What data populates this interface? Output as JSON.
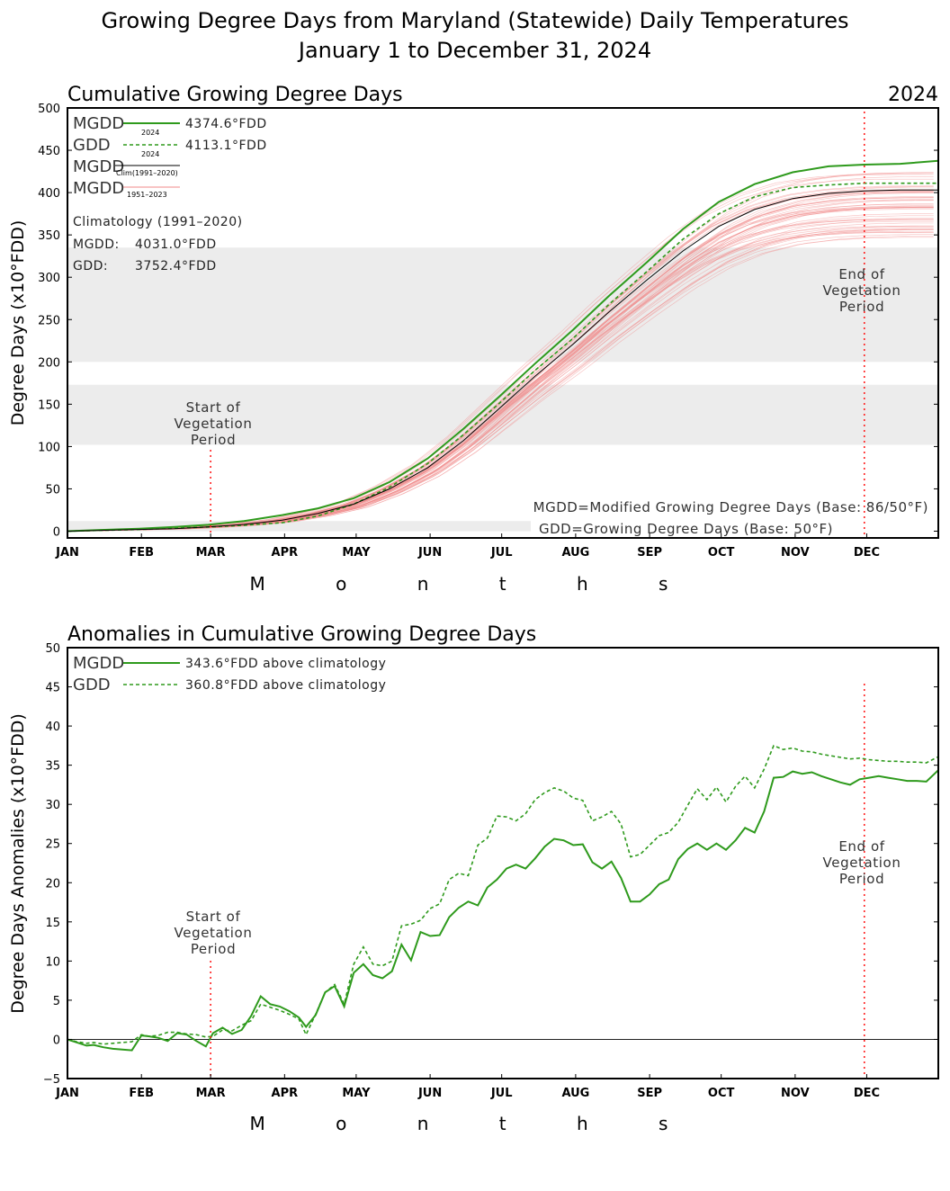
{
  "title_line1": "Growing Degree Days from Maryland (Statewide) Daily Temperatures",
  "title_line2": "January 1 to December 31, 2024",
  "months": [
    "JAN",
    "FEB",
    "MAR",
    "APR",
    "MAY",
    "JUN",
    "JUL",
    "AUG",
    "SEP",
    "OCT",
    "NOV",
    "DEC"
  ],
  "months_axis_label": "M o n t h s",
  "colors": {
    "green": "#2e9a1c",
    "climatology": "#000000",
    "historical": "#f08a8a",
    "vegetation_marker": "#ff2020",
    "band": "#ececec"
  },
  "top": {
    "title": "Cumulative Growing Degree Days",
    "year_label": "2024",
    "ylabel": "Degree Days (x10°FDD)",
    "yticks": [
      "0",
      "50",
      "100",
      "150",
      "200",
      "250",
      "300",
      "350",
      "400",
      "450",
      "500"
    ],
    "legend": {
      "mgdd_label": "MGDD",
      "mgdd_sub": "2024",
      "mgdd_value": "4374.6°FDD",
      "gdd_label": "GDD",
      "gdd_sub": "2024",
      "gdd_value": "4113.1°FDD",
      "clim_label": "MGDD",
      "clim_sub": "Clim(1991–2020)",
      "hist_label": "MGDD",
      "hist_sub": "1951–2023"
    },
    "climatology": {
      "heading": "Climatology (1991–2020)",
      "mgdd_label": "MGDD:",
      "mgdd_value": "4031.0°FDD",
      "gdd_label": "GDD:",
      "gdd_value": "3752.4°FDD"
    },
    "notes": {
      "mgdd_def": "MGDD=Modified Growing Degree Days (Base: 86/50°F)",
      "gdd_def": "GDD=Growing Degree Days (Base: 50°F)"
    },
    "start_veg": [
      "Start of",
      "Vegetation",
      "Period"
    ],
    "end_veg": [
      "End of",
      "Vegetation",
      "Period"
    ]
  },
  "bottom": {
    "title": "Anomalies in Cumulative Growing Degree Days",
    "ylabel": "Degree Days Anomalies (x10°FDD)",
    "yticks": [
      "−5",
      "0",
      "5",
      "10",
      "15",
      "20",
      "25",
      "30",
      "35",
      "40",
      "45",
      "50"
    ],
    "legend": {
      "mgdd_label": "MGDD",
      "mgdd_value": "343.6°FDD above climatology",
      "gdd_label": "GDD",
      "gdd_value": "360.8°FDD above climatology"
    },
    "start_veg": [
      "Start of",
      "Vegetation",
      "Period"
    ],
    "end_veg": [
      "End of",
      "Vegetation",
      "Period"
    ]
  },
  "chart_data": [
    {
      "type": "line",
      "title": "Cumulative Growing Degree Days",
      "xlabel": "Months",
      "ylabel": "Degree Days (x10°FDD)",
      "ylim": [
        0,
        500
      ],
      "x_unit": "day of year",
      "vegetation_period_days": [
        61,
        335
      ],
      "shaded_bands": [
        [
          0,
          12
        ],
        [
          102,
          173
        ],
        [
          200,
          335
        ]
      ],
      "series": [
        {
          "name": "MGDD 2024",
          "style": "solid",
          "x": [
            1,
            15,
            31,
            46,
            60,
            75,
            91,
            106,
            121,
            136,
            152,
            167,
            182,
            197,
            213,
            228,
            244,
            259,
            274,
            289,
            305,
            320,
            335,
            350,
            366
          ],
          "values": [
            0,
            1.5,
            3,
            5,
            7.5,
            12,
            19,
            27,
            39,
            58,
            86,
            121,
            159,
            198,
            238,
            278,
            318,
            357,
            389,
            410,
            424,
            431,
            433,
            434,
            437.5
          ]
        },
        {
          "name": "GDD 2024",
          "style": "dashed",
          "x": [
            1,
            15,
            31,
            46,
            60,
            75,
            91,
            106,
            121,
            136,
            152,
            167,
            182,
            197,
            213,
            228,
            244,
            259,
            274,
            289,
            305,
            320,
            335,
            350,
            366
          ],
          "values": [
            0,
            1,
            2,
            3.5,
            5,
            7,
            10,
            18,
            32,
            52,
            80,
            114,
            151,
            190,
            228,
            268,
            307,
            345,
            375,
            395,
            406,
            409,
            411,
            411,
            411
          ]
        },
        {
          "name": "MGDD Clim(1991–2020)",
          "style": "solid",
          "x": [
            1,
            15,
            31,
            46,
            60,
            75,
            91,
            106,
            121,
            136,
            152,
            167,
            182,
            197,
            213,
            228,
            244,
            259,
            274,
            289,
            305,
            320,
            335,
            350,
            366
          ],
          "values": [
            0,
            1,
            2,
            3,
            5,
            8,
            13,
            21,
            32,
            50,
            75,
            107,
            145,
            183,
            221,
            259,
            297,
            331,
            360,
            380,
            393,
            399,
            402,
            403,
            403.1
          ]
        }
      ]
    },
    {
      "type": "line",
      "title": "Anomalies in Cumulative Growing Degree Days",
      "xlabel": "Months",
      "ylabel": "Degree Days Anomalies (x10°FDD)",
      "ylim": [
        -5,
        50
      ],
      "x_unit": "day of year",
      "vegetation_period_days": [
        61,
        335
      ],
      "series": [
        {
          "name": "MGDD",
          "style": "solid",
          "x": [
            1,
            5,
            9,
            12,
            16,
            20,
            24,
            28,
            32,
            35,
            39,
            43,
            47,
            51,
            55,
            59,
            62,
            66,
            70,
            74,
            78,
            82,
            86,
            90,
            94,
            98,
            101,
            105,
            109,
            113,
            117,
            121,
            125,
            129,
            133,
            137,
            141,
            145,
            149,
            153,
            157,
            161,
            165,
            169,
            173,
            177,
            181,
            185,
            189,
            193,
            197,
            201,
            205,
            209,
            213,
            217,
            221,
            225,
            229,
            233,
            237,
            241,
            245,
            249,
            253,
            257,
            261,
            265,
            269,
            273,
            277,
            281,
            285,
            289,
            293,
            297,
            301,
            305,
            309,
            313,
            317,
            321,
            325,
            329,
            333,
            337,
            341,
            345,
            349,
            353,
            357,
            361,
            366
          ],
          "values": [
            0,
            -0.4,
            -0.8,
            -0.7,
            -1,
            -1.2,
            -1.3,
            -1.4,
            0.5,
            0.4,
            0.2,
            -0.2,
            0.8,
            0.6,
            -0.2,
            -0.9,
            0.8,
            1.5,
            0.7,
            1.2,
            3,
            5.5,
            4.5,
            4.2,
            3.6,
            2.8,
            1.6,
            3.1,
            6,
            6.8,
            4.2,
            8.5,
            9.6,
            8.2,
            7.8,
            8.7,
            12.1,
            10.1,
            13.7,
            13.2,
            13.3,
            15.6,
            16.8,
            17.6,
            17.1,
            19.4,
            20.4,
            21.8,
            22.3,
            21.8,
            23.1,
            24.6,
            25.6,
            25.4,
            24.8,
            24.9,
            22.6,
            21.8,
            22.7,
            20.6,
            17.6,
            17.6,
            18.5,
            19.8,
            20.4,
            23,
            24.3,
            25,
            24.2,
            25,
            24.2,
            25.4,
            27,
            26.4,
            29.1,
            33.4,
            33.5,
            34.2,
            33.9,
            34.1,
            33.6,
            33.2,
            32.8,
            32.5,
            33.2,
            33.4,
            33.6,
            33.4,
            33.2,
            33.0,
            33.0,
            32.9,
            34.36
          ]
        },
        {
          "name": "GDD",
          "style": "dashed",
          "x": [
            1,
            5,
            9,
            12,
            16,
            20,
            24,
            28,
            32,
            35,
            39,
            43,
            47,
            51,
            55,
            59,
            62,
            66,
            70,
            74,
            78,
            82,
            86,
            90,
            94,
            98,
            101,
            105,
            109,
            113,
            117,
            121,
            125,
            129,
            133,
            137,
            141,
            145,
            149,
            153,
            157,
            161,
            165,
            169,
            173,
            177,
            181,
            185,
            189,
            193,
            197,
            201,
            205,
            209,
            213,
            217,
            221,
            225,
            229,
            233,
            237,
            241,
            245,
            249,
            253,
            257,
            261,
            265,
            269,
            273,
            277,
            281,
            285,
            289,
            293,
            297,
            301,
            305,
            309,
            313,
            317,
            321,
            325,
            329,
            333,
            337,
            341,
            345,
            349,
            353,
            357,
            361,
            366
          ],
          "values": [
            0,
            -0.3,
            -0.5,
            -0.4,
            -0.6,
            -0.5,
            -0.4,
            -0.3,
            0.6,
            0.4,
            0.5,
            0.9,
            0.9,
            0.7,
            0.6,
            0.3,
            0.4,
            1.2,
            1.1,
            1.8,
            2.4,
            4.5,
            4.1,
            3.7,
            3.2,
            2.6,
            0.6,
            3.2,
            6,
            7,
            4.5,
            9.6,
            11.8,
            9.6,
            9.4,
            10,
            14.5,
            14.7,
            15.2,
            16.7,
            17.3,
            20.4,
            21.2,
            20.9,
            24.8,
            25.7,
            28.5,
            28.4,
            27.9,
            28.8,
            30.6,
            31.5,
            32.1,
            31.7,
            30.8,
            30.5,
            27.9,
            28.4,
            29.1,
            27.5,
            23.3,
            23.6,
            24.8,
            26,
            26.4,
            27.7,
            29.9,
            32,
            30.6,
            32.2,
            30.3,
            32.3,
            33.6,
            32.1,
            34.5,
            37.5,
            37,
            37.2,
            36.8,
            36.7,
            36.4,
            36.2,
            36.0,
            35.8,
            35.9,
            35.7,
            35.6,
            35.5,
            35.5,
            35.4,
            35.4,
            35.3,
            36.08
          ]
        }
      ]
    }
  ]
}
